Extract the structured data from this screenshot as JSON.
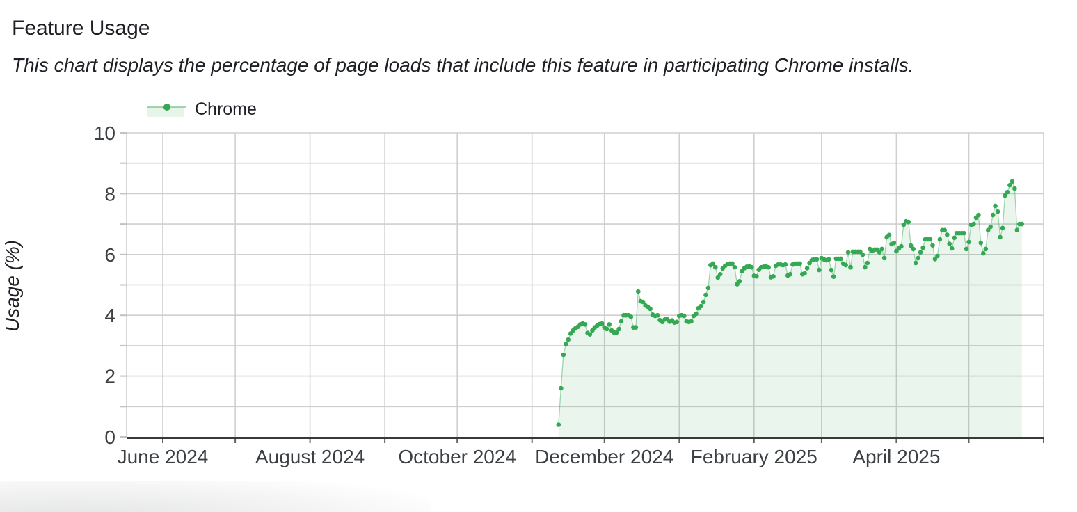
{
  "page": {
    "title": "Feature Usage",
    "subtitle": "This chart displays the percentage of page loads that include this feature in participating Chrome installs."
  },
  "legend": {
    "series_label": "Chrome"
  },
  "colors": {
    "series": "#34A853",
    "series_fill_opacity": 0.1,
    "series_line_opacity": 0.45,
    "grid": "#cfcfcf",
    "axis_line": "#37393b",
    "tick_mark": "#5f6368",
    "y_tick_mark": "#c2c2c2",
    "tick_label": "#3c4043",
    "text": "#1d2024"
  },
  "chart_data": {
    "type": "area",
    "title": "Feature Usage",
    "ylabel": "Usage (%)",
    "xlabel": "",
    "ylim": [
      0,
      10
    ],
    "y_ticks": [
      0,
      2,
      4,
      6,
      8,
      10
    ],
    "grid": true,
    "legend_position": "top-left",
    "x_axis": {
      "domain_start": "2024-05-17",
      "domain_end": "2025-06-01",
      "gridlines": "monthly",
      "ticks": [
        {
          "date": "2024-06-01",
          "label": "June 2024"
        },
        {
          "date": "2024-08-01",
          "label": "August 2024"
        },
        {
          "date": "2024-10-01",
          "label": "October 2024"
        },
        {
          "date": "2024-12-01",
          "label": "December 2024"
        },
        {
          "date": "2025-02-01",
          "label": "February 2025"
        },
        {
          "date": "2025-04-01",
          "label": "April 2025"
        }
      ]
    },
    "series": [
      {
        "name": "Chrome",
        "start_date": "2024-11-12",
        "frequency": "daily",
        "values": [
          0.4,
          1.6,
          2.7,
          3.05,
          3.2,
          3.4,
          3.5,
          3.57,
          3.62,
          3.7,
          3.73,
          3.7,
          3.42,
          3.37,
          3.5,
          3.6,
          3.66,
          3.71,
          3.73,
          3.6,
          3.55,
          3.7,
          3.5,
          3.43,
          3.43,
          3.55,
          3.8,
          4.0,
          4.0,
          4.0,
          3.95,
          3.6,
          3.6,
          4.78,
          4.46,
          4.44,
          4.32,
          4.28,
          4.21,
          4.02,
          3.98,
          4.0,
          3.84,
          3.78,
          3.86,
          3.87,
          3.79,
          3.83,
          3.76,
          3.78,
          3.98,
          4.0,
          3.98,
          3.8,
          3.78,
          3.8,
          3.98,
          4.05,
          4.23,
          4.3,
          4.44,
          4.67,
          4.9,
          5.65,
          5.7,
          5.58,
          5.24,
          5.35,
          5.54,
          5.63,
          5.68,
          5.7,
          5.7,
          5.58,
          5.02,
          5.12,
          5.45,
          5.55,
          5.6,
          5.61,
          5.58,
          5.3,
          5.28,
          5.5,
          5.58,
          5.6,
          5.61,
          5.58,
          5.25,
          5.28,
          5.63,
          5.67,
          5.67,
          5.65,
          5.67,
          5.31,
          5.35,
          5.67,
          5.7,
          5.7,
          5.7,
          5.35,
          5.38,
          5.55,
          5.72,
          5.82,
          5.84,
          5.84,
          5.49,
          5.88,
          5.84,
          5.81,
          5.84,
          5.49,
          5.27,
          5.86,
          5.86,
          5.86,
          5.7,
          5.65,
          6.07,
          5.58,
          6.09,
          6.09,
          6.09,
          6.09,
          5.99,
          5.58,
          5.72,
          6.18,
          6.11,
          6.16,
          6.16,
          6.07,
          6.18,
          5.88,
          6.57,
          6.64,
          6.34,
          6.38,
          6.11,
          6.2,
          6.27,
          6.98,
          7.09,
          7.07,
          6.29,
          6.18,
          5.72,
          5.88,
          6.07,
          6.22,
          6.5,
          6.5,
          6.5,
          6.3,
          5.85,
          5.95,
          6.5,
          6.8,
          6.8,
          6.65,
          6.35,
          6.2,
          6.55,
          6.7,
          6.7,
          6.7,
          6.7,
          6.18,
          6.41,
          6.98,
          7.0,
          7.21,
          7.3,
          6.38,
          6.04,
          6.18,
          6.8,
          6.91,
          7.3,
          7.6,
          7.41,
          6.57,
          6.87,
          7.94,
          8.05,
          8.28,
          8.4,
          8.17,
          6.8,
          7.0,
          7.0
        ]
      }
    ]
  }
}
